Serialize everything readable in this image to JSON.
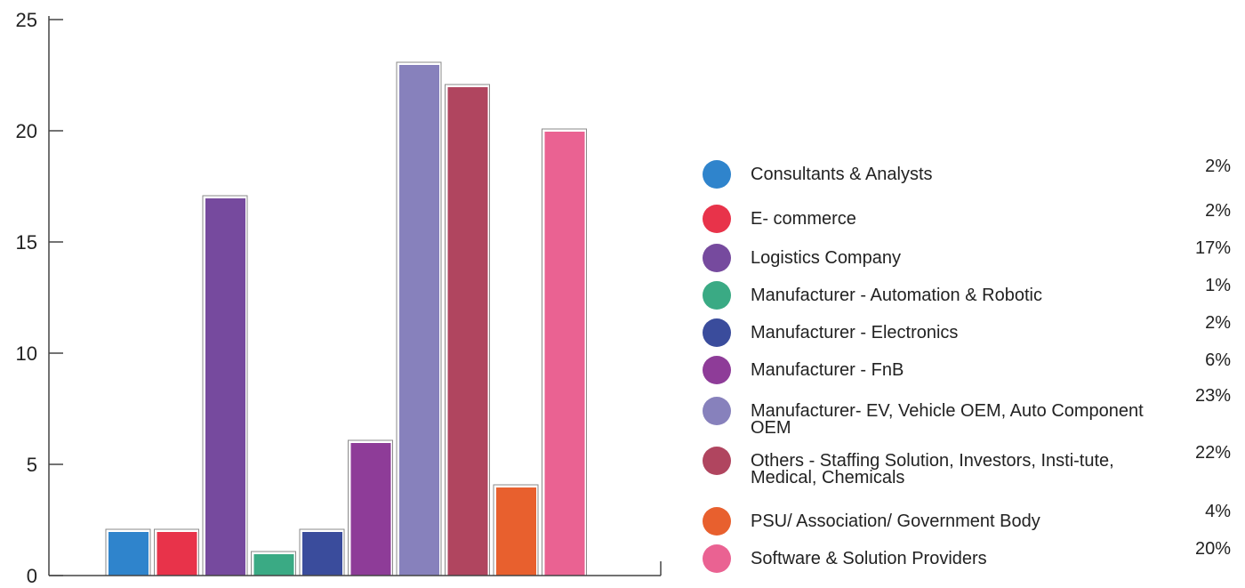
{
  "chart_data": {
    "type": "bar",
    "title": "",
    "xlabel": "",
    "ylabel": "",
    "ylim": [
      0,
      25
    ],
    "yticks": [
      0,
      5,
      10,
      15,
      20,
      25
    ],
    "grid": false,
    "legend_position": "right",
    "categories": [
      "Consultants & Analysts",
      "E- commerce",
      "Logistics Company",
      "Manufacturer - Automation & Robotic",
      "Manufacturer - Electronics",
      "Manufacturer - FnB",
      "Manufacturer- EV, Vehicle OEM, Auto Component OEM",
      "Others - Staffing Solution, Investors, Institute, Medical, Chemicals",
      "PSU/ Association/ Government Body",
      "Software & Solution Providers"
    ],
    "values": [
      2,
      2,
      17,
      1,
      2,
      6,
      23,
      22,
      4,
      20
    ],
    "colors": [
      "#2f84cc",
      "#e8334a",
      "#764a9e",
      "#3aaa84",
      "#3a4c9c",
      "#8e3c98",
      "#8781bc",
      "#b0455f",
      "#e8602e",
      "#ea6292"
    ]
  },
  "legend": [
    {
      "label": "Consultants & Analysts",
      "value": "2%"
    },
    {
      "label": "E- commerce",
      "value": "2%"
    },
    {
      "label": "Logistics Company",
      "value": "17%"
    },
    {
      "label": "Manufacturer - Automation & Robotic",
      "value": "1%"
    },
    {
      "label": "Manufacturer - Electronics",
      "value": "2%"
    },
    {
      "label": "Manufacturer - FnB",
      "value": "6%"
    },
    {
      "label": "Manufacturer- EV, Vehicle OEM, Auto Component OEM",
      "value": "23%"
    },
    {
      "label": "Others - Staffing Solution, Investors, Insti-tute, Medical, Chemicals",
      "value": "22%"
    },
    {
      "label": "PSU/ Association/ Government Body",
      "value": "4%"
    },
    {
      "label": "Software & Solution Providers",
      "value": "20%"
    }
  ]
}
